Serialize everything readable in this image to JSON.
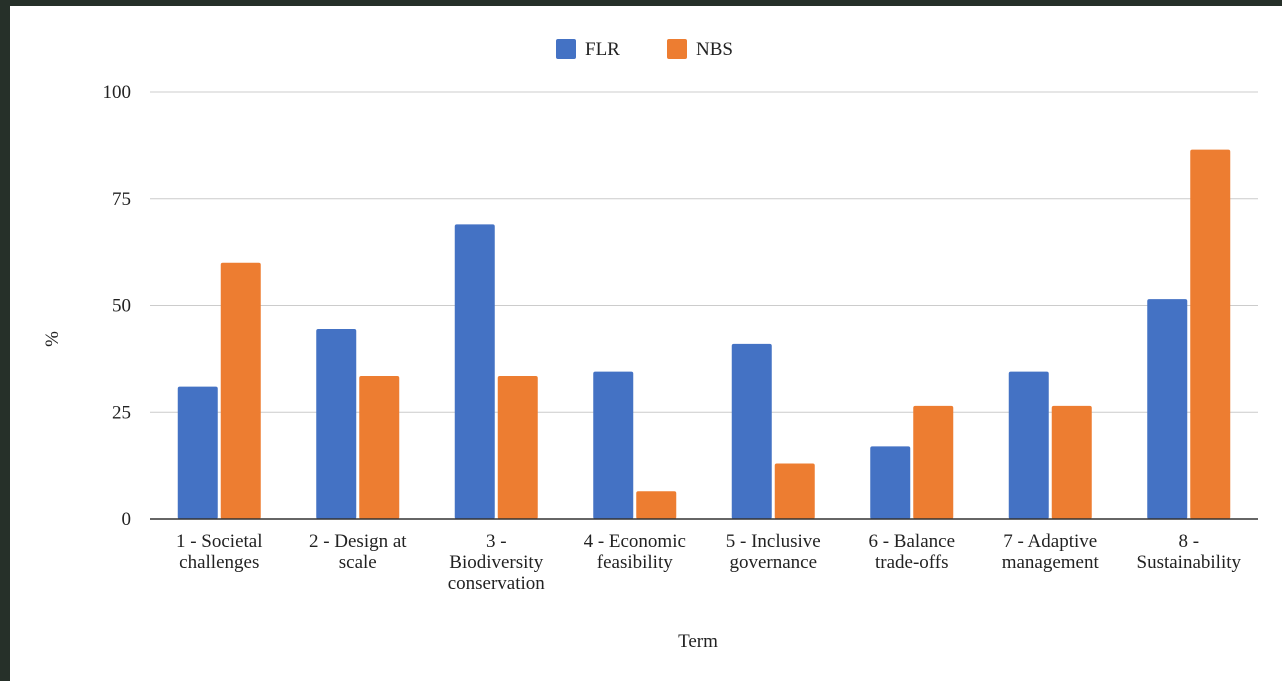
{
  "chart_data": {
    "type": "bar",
    "categories": [
      [
        "1 - Societal",
        "challenges"
      ],
      [
        "2 - Design at",
        "scale"
      ],
      [
        "3 -",
        "Biodiversity",
        "conservation"
      ],
      [
        "4 - Economic",
        "feasibility"
      ],
      [
        "5 - Inclusive",
        "governance"
      ],
      [
        "6 - Balance",
        "trade-offs"
      ],
      [
        "7 - Adaptive",
        "management"
      ],
      [
        "8 -",
        "Sustainability"
      ]
    ],
    "series": [
      {
        "name": "FLR",
        "color": "#4472c4",
        "values": [
          31,
          44.5,
          69,
          34.5,
          41,
          17,
          34.5,
          51.5
        ]
      },
      {
        "name": "NBS",
        "color": "#ed7d31",
        "values": [
          60,
          33.5,
          33.5,
          6.5,
          13,
          26.5,
          26.5,
          86.5
        ]
      }
    ],
    "xlabel": "Term",
    "ylabel": "%",
    "ylim": [
      0,
      100
    ],
    "yticks": [
      "0",
      "25",
      "50",
      "75",
      "100"
    ],
    "grid": true,
    "legend_position": "top-center"
  }
}
